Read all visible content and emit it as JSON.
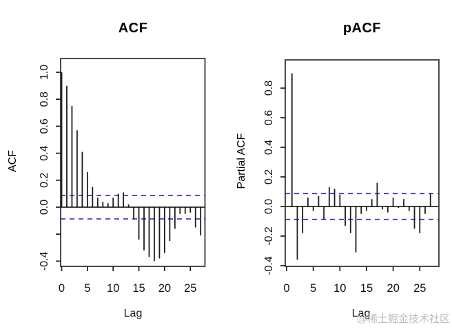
{
  "window": {
    "background": "#ffffff"
  },
  "watermark": {
    "text": "@稀土掘金技术社区",
    "color": "#bcbcbc"
  },
  "chart_data": [
    {
      "type": "bar",
      "id": "acf",
      "title": "ACF",
      "xlabel": "Lag",
      "ylabel": "ACF",
      "lag_start": 0,
      "lags": [
        0,
        1,
        2,
        3,
        4,
        5,
        6,
        7,
        8,
        9,
        10,
        11,
        12,
        13,
        14,
        15,
        16,
        17,
        18,
        19,
        20,
        21,
        22,
        23,
        24,
        25,
        26,
        27
      ],
      "values": [
        1.0,
        0.9,
        0.75,
        0.57,
        0.41,
        0.26,
        0.15,
        0.07,
        0.04,
        0.03,
        0.07,
        0.1,
        0.11,
        0.02,
        -0.09,
        -0.24,
        -0.32,
        -0.37,
        -0.4,
        -0.38,
        -0.34,
        -0.25,
        -0.16,
        -0.05,
        -0.05,
        -0.04,
        -0.15,
        -0.21
      ],
      "conf_interval": 0.087,
      "conf_style": "dashed",
      "ylim": [
        -0.45,
        1.05
      ],
      "xlim": [
        0,
        28
      ],
      "grid": false,
      "legend": null,
      "yticks": [
        {
          "value": 1.0,
          "label": "1.0"
        },
        {
          "value": 0.8,
          "label": "0.8"
        },
        {
          "value": 0.6,
          "label": "0.6"
        },
        {
          "value": 0.4,
          "label": "0.4"
        },
        {
          "value": 0.2,
          "label": "0.2"
        },
        {
          "value": 0.0,
          "label": "0.0"
        },
        {
          "value": -0.2,
          "label": ""
        },
        {
          "value": -0.4,
          "label": "-0.4"
        }
      ],
      "xticks": [
        {
          "value": 0,
          "label": "0"
        },
        {
          "value": 5,
          "label": "5"
        },
        {
          "value": 10,
          "label": "10"
        },
        {
          "value": 15,
          "label": "15"
        },
        {
          "value": 20,
          "label": "20"
        },
        {
          "value": 25,
          "label": "25"
        }
      ],
      "colors": {
        "spike": "#1d1d1d",
        "zero_line": "#000000",
        "ci_line": "#2323cd",
        "frame": "#2b2b2b"
      }
    },
    {
      "type": "bar",
      "id": "pacf",
      "title": "pACF",
      "xlabel": "Lag",
      "ylabel": "Partial ACF",
      "lag_start": 1,
      "lags": [
        1,
        2,
        3,
        4,
        5,
        6,
        7,
        8,
        9,
        10,
        11,
        12,
        13,
        14,
        15,
        16,
        17,
        18,
        19,
        20,
        21,
        22,
        23,
        24,
        25,
        26,
        27
      ],
      "values": [
        0.9,
        -0.36,
        -0.18,
        0.06,
        -0.03,
        0.07,
        -0.09,
        0.13,
        0.12,
        0.08,
        -0.13,
        -0.18,
        -0.31,
        -0.05,
        -0.03,
        0.05,
        0.16,
        -0.02,
        -0.04,
        0.06,
        -0.01,
        0.05,
        -0.03,
        -0.15,
        -0.18,
        -0.05,
        0.09
      ],
      "conf_interval": 0.087,
      "conf_style": "dashed",
      "ylim": [
        -0.43,
        0.95
      ],
      "xlim": [
        0,
        28
      ],
      "grid": false,
      "legend": null,
      "yticks": [
        {
          "value": 0.8,
          "label": "0.8"
        },
        {
          "value": 0.6,
          "label": "0.6"
        },
        {
          "value": 0.4,
          "label": "0.4"
        },
        {
          "value": 0.2,
          "label": "0.2"
        },
        {
          "value": 0.0,
          "label": "0.0"
        },
        {
          "value": -0.2,
          "label": "-0.2"
        },
        {
          "value": -0.4,
          "label": "-0.4"
        }
      ],
      "xticks": [
        {
          "value": 0,
          "label": "0"
        },
        {
          "value": 5,
          "label": "5"
        },
        {
          "value": 10,
          "label": "10"
        },
        {
          "value": 15,
          "label": "15"
        },
        {
          "value": 20,
          "label": "20"
        },
        {
          "value": 25,
          "label": "25"
        }
      ],
      "colors": {
        "spike": "#1d1d1d",
        "zero_line": "#000000",
        "ci_line": "#2323cd",
        "frame": "#2b2b2b"
      }
    }
  ]
}
